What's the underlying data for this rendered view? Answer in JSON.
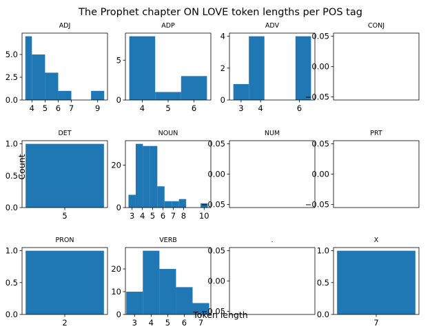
{
  "figure": {
    "title": "The Prophet chapter ON LOVE token lengths per POS tag",
    "xlabel": "Token length",
    "ylabel": "Count",
    "bar_color": "#1f77b4"
  },
  "chart_data": [
    {
      "type": "bar",
      "title": "ADJ",
      "bins": [
        [
          3.5,
          4,
          7
        ],
        [
          4,
          5,
          5
        ],
        [
          5,
          6,
          3
        ],
        [
          6,
          7,
          1
        ],
        [
          8.5,
          9.5,
          1
        ]
      ],
      "xlim": [
        3.25,
        9.75
      ],
      "ylim": [
        0,
        7.35
      ],
      "xticks": [
        4,
        5,
        6,
        7,
        9
      ],
      "xtick_labels": [
        "4",
        "5",
        "6",
        "7",
        "9"
      ],
      "yticks": [
        0,
        2.5,
        5
      ],
      "ytick_labels": [
        "0.0",
        "2.5",
        "5.0"
      ]
    },
    {
      "type": "bar",
      "title": "ADP",
      "bins": [
        [
          3.5,
          4.5,
          8
        ],
        [
          4.5,
          5.5,
          1
        ],
        [
          5.5,
          6.5,
          3
        ]
      ],
      "xlim": [
        3.35,
        6.65
      ],
      "ylim": [
        0,
        8.4
      ],
      "xticks": [
        4,
        5,
        6
      ],
      "xtick_labels": [
        "4",
        "5",
        "6"
      ],
      "yticks": [
        0,
        5
      ],
      "ytick_labels": [
        "0",
        "5"
      ]
    },
    {
      "type": "bar",
      "title": "ADV",
      "bins": [
        [
          2.6,
          3.4,
          1
        ],
        [
          3.4,
          4.2,
          4
        ],
        [
          5.8,
          6.6,
          4
        ]
      ],
      "xlim": [
        2.4,
        6.8
      ],
      "ylim": [
        0,
        4.2
      ],
      "xticks": [
        3,
        4,
        6
      ],
      "xtick_labels": [
        "3",
        "4",
        "6"
      ],
      "yticks": [
        0,
        2,
        4
      ],
      "ytick_labels": [
        "0",
        "2",
        "4"
      ]
    },
    {
      "type": "bar",
      "title": "CONJ",
      "bins": [],
      "xlim": [
        0,
        1
      ],
      "ylim": [
        -0.055,
        0.055
      ],
      "xticks": [],
      "xtick_labels": [],
      "yticks": [
        -0.05,
        0,
        0.05
      ],
      "ytick_labels": [
        "−0.05",
        "0.00",
        "0.05"
      ]
    },
    {
      "type": "bar",
      "title": "DET",
      "bins": [
        [
          4.45,
          5.55,
          1
        ]
      ],
      "xlim": [
        4.4,
        5.6
      ],
      "ylim": [
        0,
        1.05
      ],
      "xticks": [
        5
      ],
      "xtick_labels": [
        "5"
      ],
      "yticks": [
        0,
        0.5,
        1
      ],
      "ytick_labels": [
        "0.0",
        "0.5",
        "1.0"
      ]
    },
    {
      "type": "bar",
      "title": "NOUN",
      "bins": [
        [
          2.65,
          3.35,
          6
        ],
        [
          3.35,
          4.05,
          30
        ],
        [
          4.05,
          4.75,
          29
        ],
        [
          4.75,
          5.45,
          29
        ],
        [
          5.45,
          6.15,
          10
        ],
        [
          6.15,
          6.85,
          3
        ],
        [
          6.85,
          7.55,
          3
        ],
        [
          7.55,
          8.25,
          4
        ],
        [
          9.65,
          10.35,
          2
        ]
      ],
      "xlim": [
        2.35,
        10.65
      ],
      "ylim": [
        0,
        31.5
      ],
      "xticks": [
        3,
        4,
        5,
        6,
        7,
        8,
        10
      ],
      "xtick_labels": [
        "3",
        "4",
        "5",
        "6",
        "7",
        "8",
        "10"
      ],
      "yticks": [
        0,
        20
      ],
      "ytick_labels": [
        "0",
        "20"
      ]
    },
    {
      "type": "bar",
      "title": "NUM",
      "bins": [],
      "xlim": [
        0,
        1
      ],
      "ylim": [
        -0.055,
        0.055
      ],
      "xticks": [],
      "xtick_labels": [],
      "yticks": [
        -0.05,
        0,
        0.05
      ],
      "ytick_labels": [
        "−0.05",
        "0.00",
        "0.05"
      ]
    },
    {
      "type": "bar",
      "title": "PRT",
      "bins": [],
      "xlim": [
        0,
        1
      ],
      "ylim": [
        -0.055,
        0.055
      ],
      "xticks": [],
      "xtick_labels": [],
      "yticks": [
        -0.05,
        0,
        0.05
      ],
      "ytick_labels": [
        "−0.05",
        "0.00",
        "0.05"
      ]
    },
    {
      "type": "bar",
      "title": "PRON",
      "bins": [
        [
          1.45,
          2.55,
          1
        ]
      ],
      "xlim": [
        1.4,
        2.6
      ],
      "ylim": [
        0,
        1.05
      ],
      "xticks": [
        2
      ],
      "xtick_labels": [
        "2"
      ],
      "yticks": [
        0,
        0.5,
        1
      ],
      "ytick_labels": [
        "0.0",
        "0.5",
        "1.0"
      ]
    },
    {
      "type": "bar",
      "title": "VERB",
      "bins": [
        [
          2.5,
          3.5,
          10
        ],
        [
          3.5,
          4.5,
          28
        ],
        [
          4.5,
          5.5,
          20
        ],
        [
          5.5,
          6.5,
          12
        ],
        [
          6.5,
          7.5,
          5
        ]
      ],
      "xlim": [
        2.45,
        7.6
      ],
      "ylim": [
        0,
        29.4
      ],
      "xticks": [
        3,
        4,
        5,
        6,
        7
      ],
      "xtick_labels": [
        "3",
        "4",
        "5",
        "6",
        "7"
      ],
      "yticks": [
        0,
        10,
        20
      ],
      "ytick_labels": [
        "0",
        "10",
        "20"
      ]
    },
    {
      "type": "bar",
      "title": ".",
      "bins": [],
      "xlim": [
        0,
        1
      ],
      "ylim": [
        -0.055,
        0.055
      ],
      "xticks": [],
      "xtick_labels": [],
      "yticks": [
        -0.05,
        0,
        0.05
      ],
      "ytick_labels": [
        "−0.05",
        "0.00",
        "0.05"
      ]
    },
    {
      "type": "bar",
      "title": "X",
      "bins": [
        [
          6.45,
          7.55,
          1
        ]
      ],
      "xlim": [
        6.4,
        7.6
      ],
      "ylim": [
        0,
        1.05
      ],
      "xticks": [
        7
      ],
      "xtick_labels": [
        "7"
      ],
      "yticks": [
        0,
        0.5,
        1
      ],
      "ytick_labels": [
        "0.0",
        "0.5",
        "1.0"
      ]
    }
  ]
}
